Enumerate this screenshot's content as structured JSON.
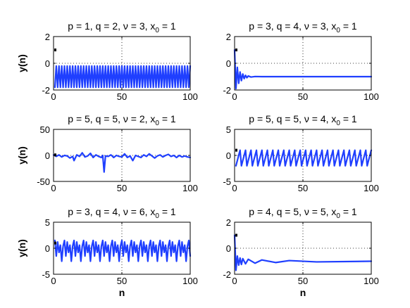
{
  "chart_data": [
    {
      "type": "line",
      "title": "p = 1, q = 2, ν = 3, x",
      "title_sub": "0",
      "title_end": " = 1",
      "ylabel": "y(n)",
      "xlabel": "",
      "xlim": [
        0,
        100
      ],
      "ylim": [
        -2,
        2
      ],
      "xticks": [
        0,
        50,
        100
      ],
      "yticks": [
        -2,
        0,
        2
      ],
      "x_grid": [
        50
      ],
      "y_grid": [
        0
      ],
      "initial_marker": [
        0,
        1
      ],
      "series": [
        {
          "color": "#1f3fff",
          "pattern": "period2",
          "x_range": [
            1,
            100
          ],
          "x": [
            1,
            2,
            3,
            4,
            100
          ],
          "y": [
            -1.8,
            -0.2,
            -1.8,
            -0.2,
            -0.2
          ]
        }
      ]
    },
    {
      "type": "line",
      "title": "p = 3, q = 4, ν = 3, x",
      "title_sub": "0",
      "title_end": " = 1",
      "ylabel": "",
      "xlabel": "",
      "xlim": [
        0,
        100
      ],
      "ylim": [
        -2,
        2
      ],
      "xticks": [
        0,
        50,
        100
      ],
      "yticks": [
        -2,
        0,
        2
      ],
      "x_grid": [
        50
      ],
      "y_grid": [
        0
      ],
      "initial_marker": [
        0,
        1
      ],
      "series": [
        {
          "color": "#1f3fff",
          "x": [
            0,
            1,
            2,
            3,
            4,
            5,
            6,
            7,
            8,
            9,
            10,
            12,
            15,
            20,
            30,
            100
          ],
          "y": [
            1,
            -1.9,
            -0.3,
            -1.5,
            -0.65,
            -1.3,
            -0.8,
            -1.15,
            -0.9,
            -1.08,
            -0.95,
            -1.03,
            -0.99,
            -1.0,
            -1.0,
            -1.0
          ]
        }
      ]
    },
    {
      "type": "line",
      "title": "p = 5, q = 5, ν = 2, x",
      "title_sub": "0",
      "title_end": " = 1",
      "ylabel": "y(n)",
      "xlabel": "",
      "xlim": [
        0,
        100
      ],
      "ylim": [
        -50,
        50
      ],
      "xticks": [
        0,
        50,
        100
      ],
      "yticks": [
        -50,
        0,
        50
      ],
      "x_grid": [
        50
      ],
      "y_grid": [
        0
      ],
      "initial_marker": [
        0,
        1
      ],
      "series": [
        {
          "color": "#1f3fff",
          "x": [
            0,
            2,
            4,
            6,
            8,
            10,
            12,
            14,
            15,
            17,
            19,
            21,
            23,
            25,
            27,
            29,
            31,
            33,
            35,
            36,
            37,
            38,
            40,
            42,
            44,
            46,
            48,
            50,
            52,
            54,
            56,
            58,
            60,
            62,
            64,
            66,
            68,
            70,
            72,
            74,
            76,
            78,
            80,
            82,
            84,
            86,
            88,
            90,
            92,
            94,
            96,
            98,
            100
          ],
          "y": [
            1,
            -2,
            1,
            -3,
            0,
            -1,
            -5,
            -2,
            -10,
            1,
            -2,
            5,
            -3,
            -1,
            4,
            -4,
            1,
            -2,
            -4,
            0,
            -32,
            -1,
            -2,
            1,
            -4,
            0,
            -2,
            -3,
            3,
            -4,
            -1,
            -10,
            0,
            -2,
            -4,
            1,
            -2,
            3,
            -1,
            -5,
            -1,
            1,
            -3,
            0,
            2,
            -2,
            0,
            -4,
            0,
            -3,
            -1,
            -3,
            -4
          ]
        }
      ]
    },
    {
      "type": "line",
      "title": "p = 5, q = 5, ν = 4, x",
      "title_sub": "0",
      "title_end": " = 1",
      "ylabel": "",
      "xlabel": "",
      "xlim": [
        0,
        100
      ],
      "ylim": [
        -5,
        5
      ],
      "xticks": [
        0,
        50,
        100
      ],
      "yticks": [
        -5,
        0,
        5
      ],
      "x_grid": [
        50
      ],
      "y_grid": [
        0
      ],
      "initial_marker": [
        0,
        1
      ],
      "series": [
        {
          "color": "#1f3fff",
          "pattern": "sawtooth",
          "x_range": [
            1,
            100
          ],
          "period": 4,
          "levels": [
            -2,
            -1,
            0,
            1
          ],
          "x": [
            1,
            2,
            3,
            4,
            5
          ],
          "y": [
            -2,
            -1,
            0,
            1,
            -2
          ]
        }
      ]
    },
    {
      "type": "line",
      "title": "p = 3, q = 4, ν = 6, x",
      "title_sub": "0",
      "title_end": " = 1",
      "ylabel": "y(n)",
      "xlabel": "n",
      "xlim": [
        0,
        100
      ],
      "ylim": [
        -5,
        5
      ],
      "xticks": [
        0,
        50,
        100
      ],
      "yticks": [
        -5,
        0,
        5
      ],
      "x_grid": [
        50
      ],
      "y_grid": [
        0
      ],
      "initial_marker": [
        0,
        1
      ],
      "series": [
        {
          "color": "#1f3fff",
          "pattern": "period7",
          "x_range": [
            1,
            100
          ],
          "levels": [
            1.5,
            -1.5,
            1.2,
            -0.8,
            0.6,
            -2.5,
            0.4
          ],
          "x": [
            1,
            2,
            3,
            4,
            5,
            6,
            7
          ],
          "y": [
            1.5,
            -1.5,
            1.2,
            -0.8,
            0.6,
            -2.5,
            0.4
          ]
        }
      ]
    },
    {
      "type": "line",
      "title": "p = 4, q = 5, ν = 5, x",
      "title_sub": "0",
      "title_end": " = 1",
      "ylabel": "",
      "xlabel": "n",
      "xlim": [
        0,
        100
      ],
      "ylim": [
        -2,
        2
      ],
      "xticks": [
        0,
        50,
        100
      ],
      "yticks": [
        -2,
        0,
        2
      ],
      "x_grid": [
        50
      ],
      "y_grid": [
        0
      ],
      "initial_marker": [
        0,
        1
      ],
      "series": [
        {
          "color": "#1f3fff",
          "x": [
            0,
            1,
            2,
            3,
            4,
            5,
            6,
            8,
            10,
            15,
            20,
            30,
            40,
            60,
            100
          ],
          "y": [
            1,
            -1.7,
            -0.6,
            -1.3,
            -0.75,
            -1.25,
            -0.8,
            -1.2,
            -0.85,
            -1.15,
            -0.9,
            -1.1,
            -0.95,
            -1.05,
            -1.0
          ]
        }
      ]
    }
  ]
}
